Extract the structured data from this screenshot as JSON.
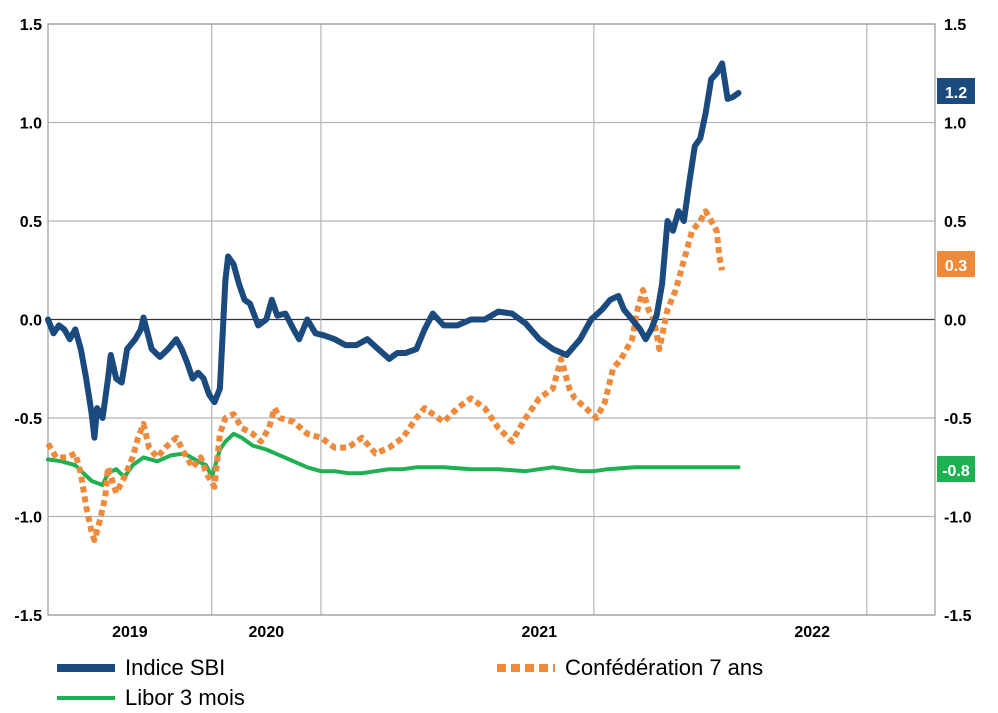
{
  "chart_data": {
    "type": "line",
    "ylim": [
      -1.5,
      1.5
    ],
    "y_ticks": [
      "1.5",
      "1.0",
      "0.5",
      "0.0",
      "-0.5",
      "-1.0",
      "-1.5"
    ],
    "y_tick_values": [
      1.5,
      1.0,
      0.5,
      0.0,
      -0.5,
      -1.0,
      -1.5
    ],
    "x_range": [
      2018.75,
      2022.0
    ],
    "x_ticks": [
      "2019",
      "2020",
      "2021",
      "2022"
    ],
    "x_tick_positions": [
      2019.05,
      2019.55,
      2020.55,
      2021.55
    ],
    "x_gridlines": [
      2019.35,
      2019.75,
      2020.75,
      2021.75
    ],
    "grid": true,
    "legend_position": "bottom",
    "colors": {
      "sbi": "#1b4a7e",
      "conf": "#ee8a3c",
      "libor": "#1fb052"
    },
    "series": [
      {
        "name": "Indice SBI",
        "style": "solid-thick",
        "end_label": "1.2",
        "points": [
          [
            2018.75,
            0.0
          ],
          [
            2018.77,
            -0.07
          ],
          [
            2018.79,
            -0.03
          ],
          [
            2018.81,
            -0.05
          ],
          [
            2018.83,
            -0.1
          ],
          [
            2018.85,
            -0.05
          ],
          [
            2018.87,
            -0.15
          ],
          [
            2018.89,
            -0.3
          ],
          [
            2018.91,
            -0.48
          ],
          [
            2018.92,
            -0.6
          ],
          [
            2018.93,
            -0.45
          ],
          [
            2018.95,
            -0.5
          ],
          [
            2018.97,
            -0.3
          ],
          [
            2018.98,
            -0.18
          ],
          [
            2019.0,
            -0.3
          ],
          [
            2019.02,
            -0.32
          ],
          [
            2019.04,
            -0.15
          ],
          [
            2019.07,
            -0.1
          ],
          [
            2019.09,
            -0.05
          ],
          [
            2019.1,
            0.01
          ],
          [
            2019.13,
            -0.15
          ],
          [
            2019.16,
            -0.19
          ],
          [
            2019.19,
            -0.15
          ],
          [
            2019.22,
            -0.1
          ],
          [
            2019.24,
            -0.15
          ],
          [
            2019.26,
            -0.22
          ],
          [
            2019.28,
            -0.3
          ],
          [
            2019.3,
            -0.27
          ],
          [
            2019.32,
            -0.3
          ],
          [
            2019.34,
            -0.38
          ],
          [
            2019.36,
            -0.42
          ],
          [
            2019.38,
            -0.35
          ],
          [
            2019.4,
            0.2
          ],
          [
            2019.41,
            0.32
          ],
          [
            2019.43,
            0.28
          ],
          [
            2019.45,
            0.18
          ],
          [
            2019.47,
            0.1
          ],
          [
            2019.49,
            0.08
          ],
          [
            2019.52,
            -0.03
          ],
          [
            2019.55,
            0.0
          ],
          [
            2019.57,
            0.1
          ],
          [
            2019.59,
            0.02
          ],
          [
            2019.62,
            0.03
          ],
          [
            2019.65,
            -0.05
          ],
          [
            2019.67,
            -0.1
          ],
          [
            2019.7,
            0.0
          ],
          [
            2019.73,
            -0.07
          ],
          [
            2019.76,
            -0.08
          ],
          [
            2019.8,
            -0.1
          ],
          [
            2019.84,
            -0.13
          ],
          [
            2019.88,
            -0.13
          ],
          [
            2019.92,
            -0.1
          ],
          [
            2019.96,
            -0.15
          ],
          [
            2020.0,
            -0.2
          ],
          [
            2020.03,
            -0.17
          ],
          [
            2020.06,
            -0.17
          ],
          [
            2020.1,
            -0.15
          ],
          [
            2020.13,
            -0.05
          ],
          [
            2020.16,
            0.03
          ],
          [
            2020.2,
            -0.03
          ],
          [
            2020.25,
            -0.03
          ],
          [
            2020.3,
            0.0
          ],
          [
            2020.35,
            0.0
          ],
          [
            2020.4,
            0.04
          ],
          [
            2020.45,
            0.03
          ],
          [
            2020.5,
            -0.02
          ],
          [
            2020.55,
            -0.1
          ],
          [
            2020.6,
            -0.15
          ],
          [
            2020.65,
            -0.18
          ],
          [
            2020.7,
            -0.1
          ],
          [
            2020.74,
            0.0
          ],
          [
            2020.78,
            0.05
          ],
          [
            2020.81,
            0.1
          ],
          [
            2020.84,
            0.12
          ],
          [
            2020.86,
            0.05
          ],
          [
            2020.89,
            0.0
          ],
          [
            2020.92,
            -0.05
          ],
          [
            2020.94,
            -0.1
          ],
          [
            2020.96,
            -0.05
          ],
          [
            2020.98,
            0.02
          ],
          [
            2021.0,
            0.18
          ],
          [
            2021.02,
            0.5
          ],
          [
            2021.04,
            0.45
          ],
          [
            2021.06,
            0.55
          ],
          [
            2021.08,
            0.5
          ],
          [
            2021.1,
            0.7
          ],
          [
            2021.12,
            0.88
          ],
          [
            2021.14,
            0.92
          ],
          [
            2021.16,
            1.05
          ],
          [
            2021.18,
            1.22
          ],
          [
            2021.2,
            1.25
          ],
          [
            2021.22,
            1.3
          ],
          [
            2021.24,
            1.12
          ],
          [
            2021.26,
            1.13
          ],
          [
            2021.28,
            1.15
          ]
        ]
      },
      {
        "name": "Confédération 7 ans",
        "style": "dotted-thick",
        "end_label": "0.3",
        "points": [
          [
            2018.75,
            -0.63
          ],
          [
            2018.78,
            -0.7
          ],
          [
            2018.82,
            -0.7
          ],
          [
            2018.85,
            -0.68
          ],
          [
            2018.87,
            -0.78
          ],
          [
            2018.89,
            -0.95
          ],
          [
            2018.91,
            -1.08
          ],
          [
            2018.92,
            -1.12
          ],
          [
            2018.94,
            -1.02
          ],
          [
            2018.96,
            -0.9
          ],
          [
            2018.97,
            -0.75
          ],
          [
            2019.0,
            -0.88
          ],
          [
            2019.03,
            -0.8
          ],
          [
            2019.06,
            -0.7
          ],
          [
            2019.08,
            -0.6
          ],
          [
            2019.1,
            -0.53
          ],
          [
            2019.12,
            -0.65
          ],
          [
            2019.15,
            -0.7
          ],
          [
            2019.18,
            -0.65
          ],
          [
            2019.22,
            -0.6
          ],
          [
            2019.25,
            -0.68
          ],
          [
            2019.28,
            -0.75
          ],
          [
            2019.31,
            -0.7
          ],
          [
            2019.33,
            -0.78
          ],
          [
            2019.36,
            -0.85
          ],
          [
            2019.38,
            -0.58
          ],
          [
            2019.4,
            -0.5
          ],
          [
            2019.43,
            -0.48
          ],
          [
            2019.46,
            -0.55
          ],
          [
            2019.5,
            -0.58
          ],
          [
            2019.53,
            -0.62
          ],
          [
            2019.56,
            -0.55
          ],
          [
            2019.58,
            -0.45
          ],
          [
            2019.6,
            -0.5
          ],
          [
            2019.65,
            -0.52
          ],
          [
            2019.7,
            -0.58
          ],
          [
            2019.75,
            -0.6
          ],
          [
            2019.8,
            -0.65
          ],
          [
            2019.85,
            -0.65
          ],
          [
            2019.9,
            -0.6
          ],
          [
            2019.95,
            -0.68
          ],
          [
            2020.0,
            -0.65
          ],
          [
            2020.05,
            -0.6
          ],
          [
            2020.1,
            -0.5
          ],
          [
            2020.13,
            -0.45
          ],
          [
            2020.16,
            -0.48
          ],
          [
            2020.2,
            -0.52
          ],
          [
            2020.25,
            -0.45
          ],
          [
            2020.3,
            -0.4
          ],
          [
            2020.35,
            -0.45
          ],
          [
            2020.4,
            -0.55
          ],
          [
            2020.45,
            -0.62
          ],
          [
            2020.5,
            -0.5
          ],
          [
            2020.55,
            -0.4
          ],
          [
            2020.6,
            -0.35
          ],
          [
            2020.63,
            -0.2
          ],
          [
            2020.66,
            -0.35
          ],
          [
            2020.68,
            -0.4
          ],
          [
            2020.72,
            -0.45
          ],
          [
            2020.76,
            -0.5
          ],
          [
            2020.79,
            -0.42
          ],
          [
            2020.82,
            -0.25
          ],
          [
            2020.85,
            -0.2
          ],
          [
            2020.87,
            -0.15
          ],
          [
            2020.89,
            -0.1
          ],
          [
            2020.91,
            0.05
          ],
          [
            2020.93,
            0.15
          ],
          [
            2020.95,
            0.05
          ],
          [
            2020.97,
            0.0
          ],
          [
            2020.99,
            -0.15
          ],
          [
            2021.02,
            0.05
          ],
          [
            2021.05,
            0.15
          ],
          [
            2021.08,
            0.3
          ],
          [
            2021.11,
            0.45
          ],
          [
            2021.14,
            0.5
          ],
          [
            2021.16,
            0.55
          ],
          [
            2021.18,
            0.5
          ],
          [
            2021.2,
            0.45
          ],
          [
            2021.21,
            0.32
          ],
          [
            2021.22,
            0.25
          ]
        ]
      },
      {
        "name": "Libor 3 mois",
        "style": "solid",
        "end_label": "-0.8",
        "points": [
          [
            2018.75,
            -0.71
          ],
          [
            2018.8,
            -0.72
          ],
          [
            2018.85,
            -0.74
          ],
          [
            2018.88,
            -0.78
          ],
          [
            2018.91,
            -0.82
          ],
          [
            2018.95,
            -0.84
          ],
          [
            2018.97,
            -0.78
          ],
          [
            2019.0,
            -0.76
          ],
          [
            2019.03,
            -0.8
          ],
          [
            2019.06,
            -0.74
          ],
          [
            2019.1,
            -0.7
          ],
          [
            2019.15,
            -0.72
          ],
          [
            2019.2,
            -0.69
          ],
          [
            2019.25,
            -0.68
          ],
          [
            2019.3,
            -0.72
          ],
          [
            2019.33,
            -0.74
          ],
          [
            2019.35,
            -0.8
          ],
          [
            2019.38,
            -0.66
          ],
          [
            2019.4,
            -0.62
          ],
          [
            2019.43,
            -0.58
          ],
          [
            2019.46,
            -0.6
          ],
          [
            2019.5,
            -0.64
          ],
          [
            2019.55,
            -0.66
          ],
          [
            2019.6,
            -0.69
          ],
          [
            2019.65,
            -0.72
          ],
          [
            2019.7,
            -0.75
          ],
          [
            2019.75,
            -0.77
          ],
          [
            2019.8,
            -0.77
          ],
          [
            2019.85,
            -0.78
          ],
          [
            2019.9,
            -0.78
          ],
          [
            2019.95,
            -0.77
          ],
          [
            2020.0,
            -0.76
          ],
          [
            2020.05,
            -0.76
          ],
          [
            2020.1,
            -0.75
          ],
          [
            2020.2,
            -0.75
          ],
          [
            2020.3,
            -0.76
          ],
          [
            2020.4,
            -0.76
          ],
          [
            2020.5,
            -0.77
          ],
          [
            2020.55,
            -0.76
          ],
          [
            2020.6,
            -0.75
          ],
          [
            2020.7,
            -0.77
          ],
          [
            2020.75,
            -0.77
          ],
          [
            2020.8,
            -0.76
          ],
          [
            2020.9,
            -0.75
          ],
          [
            2021.0,
            -0.75
          ],
          [
            2021.1,
            -0.75
          ],
          [
            2021.2,
            -0.75
          ],
          [
            2021.28,
            -0.75
          ]
        ]
      }
    ]
  },
  "legend": {
    "sbi": "Indice SBI",
    "conf": "Confédération 7 ans",
    "libor": "Libor 3 mois"
  }
}
